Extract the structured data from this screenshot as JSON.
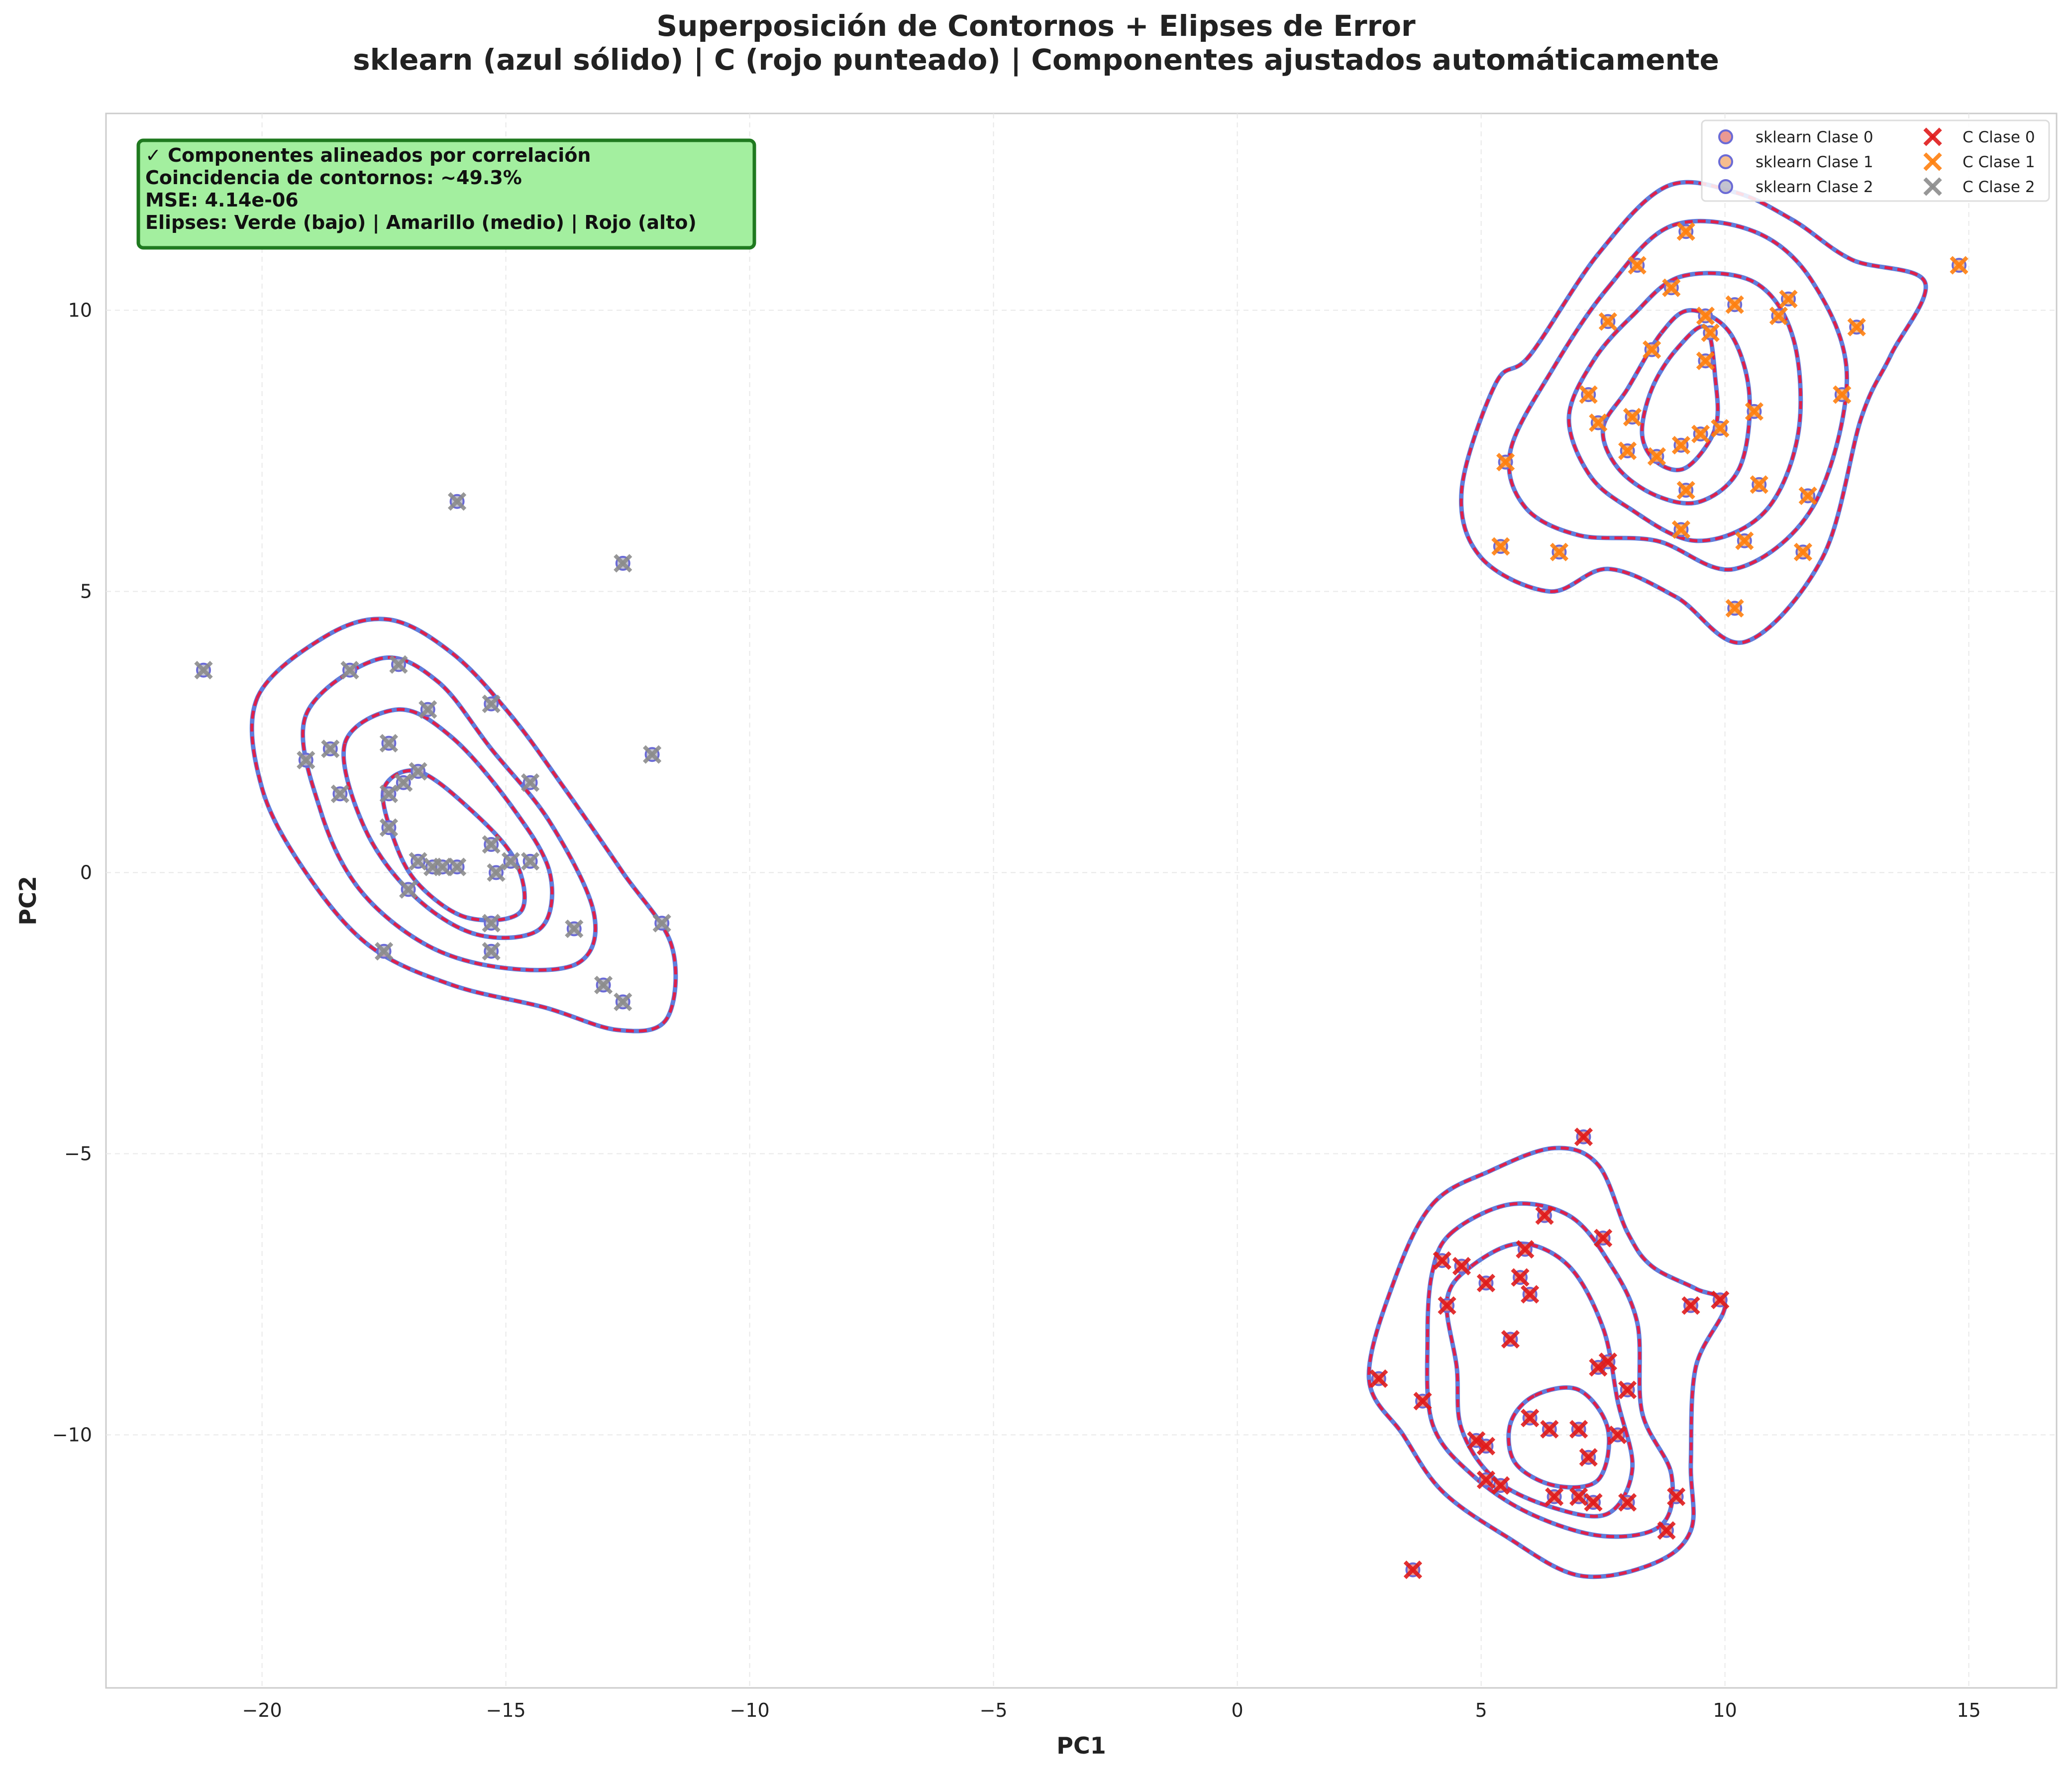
{
  "chart_data": {
    "type": "scatter",
    "title": "Superposición de Contornos + Elipses de Error",
    "subtitle": "sklearn (azul sólido) | C (rojo punteado) | Componentes ajustados automáticamente",
    "xlabel": "PC1",
    "ylabel": "PC2",
    "xlim": [
      -23.2,
      16.8
    ],
    "ylim": [
      -14.5,
      13.5
    ],
    "xticks": [
      -20,
      -15,
      -10,
      -5,
      0,
      5,
      10,
      15
    ],
    "yticks": [
      -10,
      -5,
      0,
      5,
      10
    ],
    "xtick_labels": [
      "−20",
      "−15",
      "−10",
      "−5",
      "0",
      "5",
      "10",
      "15"
    ],
    "ytick_labels": [
      "−10",
      "−5",
      "0",
      "5",
      "10"
    ],
    "grid": true,
    "legend_position": "top-right",
    "info_box": {
      "lines": [
        "✓ Componentes alineados por correlación",
        "Coincidencia de contornos: ~49.3%",
        "MSE: 4.14e-06",
        "Elipses: Verde (bajo) | Amarillo (medio) | Rojo (alto)"
      ],
      "background": "#a3ef9f",
      "border": "#1f7a1f"
    },
    "contour_colors": {
      "sklearn": "#4f6fd8",
      "c": "#e0204a"
    },
    "series": [
      {
        "name": "sklearn Clase 0",
        "marker": "circle",
        "fill": "#e8877f",
        "edge": "#6b6bd6",
        "points_of": 0
      },
      {
        "name": "sklearn Clase 1",
        "marker": "circle",
        "fill": "#f5b27a",
        "edge": "#6b6bd6",
        "points_of": 1
      },
      {
        "name": "sklearn Clase 2",
        "marker": "circle",
        "fill": "#b8b8c8",
        "edge": "#6b6bd6",
        "points_of": 2
      },
      {
        "name": "C Clase 0",
        "marker": "x",
        "color": "#e01b1b",
        "points_of": 0
      },
      {
        "name": "C Clase 1",
        "marker": "x",
        "color": "#ff7f0e",
        "points_of": 1
      },
      {
        "name": "C Clase 2",
        "marker": "x",
        "color": "#8c8c8c",
        "points_of": 2
      }
    ],
    "classes": [
      {
        "points": [
          [
            7.1,
            -4.7
          ],
          [
            6.3,
            -6.1
          ],
          [
            5.9,
            -6.7
          ],
          [
            7.5,
            -6.5
          ],
          [
            4.2,
            -6.9
          ],
          [
            4.6,
            -7.0
          ],
          [
            5.8,
            -7.2
          ],
          [
            5.1,
            -7.3
          ],
          [
            6.0,
            -7.5
          ],
          [
            4.3,
            -7.7
          ],
          [
            9.3,
            -7.7
          ],
          [
            9.9,
            -7.6
          ],
          [
            5.6,
            -8.3
          ],
          [
            7.6,
            -8.7
          ],
          [
            7.4,
            -8.8
          ],
          [
            2.9,
            -9.0
          ],
          [
            8.0,
            -9.2
          ],
          [
            3.8,
            -9.4
          ],
          [
            6.0,
            -9.7
          ],
          [
            6.4,
            -9.9
          ],
          [
            7.0,
            -9.9
          ],
          [
            7.8,
            -10.0
          ],
          [
            4.9,
            -10.1
          ],
          [
            5.1,
            -10.2
          ],
          [
            7.2,
            -10.4
          ],
          [
            5.1,
            -10.8
          ],
          [
            5.4,
            -10.9
          ],
          [
            6.5,
            -11.1
          ],
          [
            7.0,
            -11.1
          ],
          [
            7.3,
            -11.2
          ],
          [
            8.0,
            -11.2
          ],
          [
            9.0,
            -11.1
          ],
          [
            8.8,
            -11.7
          ],
          [
            3.6,
            -12.4
          ]
        ],
        "contours": [
          [
            [
              4.0,
              -5.9
            ],
            [
              5.2,
              -5.3
            ],
            [
              6.5,
              -4.9
            ],
            [
              7.4,
              -5.2
            ],
            [
              8.0,
              -6.4
            ],
            [
              8.5,
              -7.0
            ],
            [
              9.4,
              -7.4
            ],
            [
              10.0,
              -7.7
            ],
            [
              9.4,
              -8.8
            ],
            [
              9.3,
              -10.5
            ],
            [
              9.3,
              -11.7
            ],
            [
              8.5,
              -12.3
            ],
            [
              7.0,
              -12.5
            ],
            [
              5.5,
              -11.8
            ],
            [
              4.2,
              -11.0
            ],
            [
              3.4,
              -10.0
            ],
            [
              2.7,
              -9.0
            ],
            [
              3.2,
              -7.3
            ]
          ],
          [
            [
              4.4,
              -6.4
            ],
            [
              5.6,
              -5.9
            ],
            [
              6.8,
              -6.1
            ],
            [
              7.6,
              -6.9
            ],
            [
              8.2,
              -8.0
            ],
            [
              8.3,
              -9.6
            ],
            [
              8.9,
              -10.7
            ],
            [
              8.7,
              -11.6
            ],
            [
              7.5,
              -11.8
            ],
            [
              6.0,
              -11.4
            ],
            [
              4.8,
              -10.7
            ],
            [
              4.0,
              -9.8
            ],
            [
              3.9,
              -8.3
            ],
            [
              4.0,
              -7.1
            ]
          ],
          [
            [
              4.8,
              -7.0
            ],
            [
              5.8,
              -6.6
            ],
            [
              6.8,
              -7.0
            ],
            [
              7.5,
              -8.1
            ],
            [
              7.8,
              -9.4
            ],
            [
              8.1,
              -10.6
            ],
            [
              7.6,
              -11.4
            ],
            [
              6.5,
              -11.3
            ],
            [
              5.3,
              -10.8
            ],
            [
              4.6,
              -9.9
            ],
            [
              4.5,
              -8.8
            ],
            [
              4.3,
              -7.6
            ]
          ],
          [
            [
              6.1,
              -9.3
            ],
            [
              7.0,
              -9.2
            ],
            [
              7.6,
              -9.9
            ],
            [
              7.4,
              -10.8
            ],
            [
              6.5,
              -10.9
            ],
            [
              5.7,
              -10.5
            ],
            [
              5.6,
              -9.8
            ]
          ]
        ]
      },
      {
        "points": [
          [
            9.2,
            11.4
          ],
          [
            14.8,
            10.8
          ],
          [
            8.2,
            10.8
          ],
          [
            11.3,
            10.2
          ],
          [
            8.9,
            10.4
          ],
          [
            10.2,
            10.1
          ],
          [
            9.6,
            9.9
          ],
          [
            11.1,
            9.9
          ],
          [
            7.6,
            9.8
          ],
          [
            12.7,
            9.7
          ],
          [
            9.7,
            9.6
          ],
          [
            8.5,
            9.3
          ],
          [
            9.6,
            9.1
          ],
          [
            7.2,
            8.5
          ],
          [
            12.4,
            8.5
          ],
          [
            10.6,
            8.2
          ],
          [
            7.4,
            8.0
          ],
          [
            8.1,
            8.1
          ],
          [
            9.9,
            7.9
          ],
          [
            9.5,
            7.8
          ],
          [
            9.1,
            7.6
          ],
          [
            8.0,
            7.5
          ],
          [
            8.6,
            7.4
          ],
          [
            5.5,
            7.3
          ],
          [
            9.2,
            6.8
          ],
          [
            10.7,
            6.9
          ],
          [
            11.7,
            6.7
          ],
          [
            9.1,
            6.1
          ],
          [
            10.4,
            5.9
          ],
          [
            5.4,
            5.8
          ],
          [
            6.6,
            5.7
          ],
          [
            11.6,
            5.7
          ],
          [
            10.2,
            4.7
          ]
        ],
        "contours": [
          [
            [
              7.4,
              11.0
            ],
            [
              8.8,
              12.2
            ],
            [
              10.2,
              12.1
            ],
            [
              11.4,
              11.6
            ],
            [
              12.6,
              10.9
            ],
            [
              14.1,
              10.5
            ],
            [
              13.4,
              9.2
            ],
            [
              12.8,
              8.1
            ],
            [
              12.0,
              5.6
            ],
            [
              10.4,
              4.1
            ],
            [
              9.0,
              4.9
            ],
            [
              7.6,
              5.4
            ],
            [
              6.4,
              5.0
            ],
            [
              5.0,
              5.6
            ],
            [
              4.6,
              6.8
            ],
            [
              5.3,
              8.7
            ],
            [
              6.0,
              9.2
            ]
          ],
          [
            [
              7.6,
              10.4
            ],
            [
              8.9,
              11.5
            ],
            [
              10.6,
              11.4
            ],
            [
              11.8,
              10.5
            ],
            [
              12.5,
              8.8
            ],
            [
              11.8,
              6.5
            ],
            [
              10.2,
              5.4
            ],
            [
              8.6,
              5.9
            ],
            [
              7.0,
              6.0
            ],
            [
              5.9,
              6.5
            ],
            [
              5.6,
              7.5
            ],
            [
              6.5,
              9.0
            ]
          ],
          [
            [
              8.1,
              9.9
            ],
            [
              9.1,
              10.6
            ],
            [
              10.6,
              10.5
            ],
            [
              11.4,
              9.5
            ],
            [
              11.5,
              7.8
            ],
            [
              10.8,
              6.4
            ],
            [
              9.4,
              5.9
            ],
            [
              8.0,
              6.5
            ],
            [
              7.2,
              7.1
            ],
            [
              6.8,
              8.1
            ],
            [
              7.3,
              9.1
            ]
          ],
          [
            [
              8.7,
              9.6
            ],
            [
              9.3,
              10.0
            ],
            [
              10.1,
              9.6
            ],
            [
              10.5,
              8.5
            ],
            [
              10.3,
              7.2
            ],
            [
              9.5,
              6.6
            ],
            [
              8.6,
              6.7
            ],
            [
              7.8,
              7.2
            ],
            [
              7.5,
              7.9
            ],
            [
              8.0,
              8.6
            ]
          ],
          [
            [
              9.0,
              9.3
            ],
            [
              9.6,
              9.7
            ],
            [
              9.8,
              8.8
            ],
            [
              9.8,
              7.9
            ],
            [
              9.2,
              7.2
            ],
            [
              8.6,
              7.3
            ],
            [
              8.3,
              7.8
            ],
            [
              8.5,
              8.6
            ]
          ]
        ]
      },
      {
        "points": [
          [
            -16.0,
            6.6
          ],
          [
            -12.6,
            5.5
          ],
          [
            -21.2,
            3.6
          ],
          [
            -17.2,
            3.7
          ],
          [
            -18.2,
            3.6
          ],
          [
            -15.3,
            3.0
          ],
          [
            -16.6,
            2.9
          ],
          [
            -17.4,
            2.3
          ],
          [
            -18.6,
            2.2
          ],
          [
            -19.1,
            2.0
          ],
          [
            -12.0,
            2.1
          ],
          [
            -16.8,
            1.8
          ],
          [
            -17.1,
            1.6
          ],
          [
            -14.5,
            1.6
          ],
          [
            -18.4,
            1.4
          ],
          [
            -17.4,
            1.4
          ],
          [
            -17.4,
            0.8
          ],
          [
            -15.3,
            0.5
          ],
          [
            -16.8,
            0.2
          ],
          [
            -16.5,
            0.1
          ],
          [
            -16.3,
            0.1
          ],
          [
            -16.0,
            0.1
          ],
          [
            -14.9,
            0.2
          ],
          [
            -14.5,
            0.2
          ],
          [
            -15.2,
            0.0
          ],
          [
            -17.0,
            -0.3
          ],
          [
            -15.3,
            -0.9
          ],
          [
            -13.6,
            -1.0
          ],
          [
            -11.8,
            -0.9
          ],
          [
            -17.5,
            -1.4
          ],
          [
            -15.3,
            -1.4
          ],
          [
            -13.0,
            -2.0
          ],
          [
            -12.6,
            -2.3
          ]
        ],
        "contours": [
          [
            [
              -20.1,
              3.1
            ],
            [
              -18.7,
              4.2
            ],
            [
              -17.4,
              4.5
            ],
            [
              -16.1,
              3.9
            ],
            [
              -14.9,
              2.8
            ],
            [
              -13.8,
              1.5
            ],
            [
              -12.6,
              0.0
            ],
            [
              -11.6,
              -1.3
            ],
            [
              -11.7,
              -2.6
            ],
            [
              -12.7,
              -2.8
            ],
            [
              -14.2,
              -2.4
            ],
            [
              -16.1,
              -2.0
            ],
            [
              -17.8,
              -1.3
            ],
            [
              -19.1,
              0.0
            ],
            [
              -20.0,
              1.5
            ]
          ],
          [
            [
              -19.1,
              2.8
            ],
            [
              -17.6,
              3.8
            ],
            [
              -16.4,
              3.4
            ],
            [
              -15.3,
              2.2
            ],
            [
              -14.1,
              0.9
            ],
            [
              -13.2,
              -0.7
            ],
            [
              -13.5,
              -1.6
            ],
            [
              -15.0,
              -1.7
            ],
            [
              -16.6,
              -1.3
            ],
            [
              -18.0,
              -0.3
            ],
            [
              -18.8,
              1.1
            ]
          ],
          [
            [
              -18.3,
              2.3
            ],
            [
              -17.2,
              2.9
            ],
            [
              -16.1,
              2.4
            ],
            [
              -14.9,
              1.2
            ],
            [
              -14.1,
              0.0
            ],
            [
              -14.3,
              -1.0
            ],
            [
              -15.6,
              -1.1
            ],
            [
              -16.9,
              -0.4
            ],
            [
              -17.9,
              0.8
            ]
          ],
          [
            [
              -17.5,
              1.5
            ],
            [
              -16.8,
              1.8
            ],
            [
              -15.7,
              1.1
            ],
            [
              -14.8,
              0.2
            ],
            [
              -14.7,
              -0.7
            ],
            [
              -15.8,
              -0.8
            ],
            [
              -16.8,
              -0.2
            ],
            [
              -17.3,
              0.6
            ]
          ]
        ]
      }
    ]
  }
}
